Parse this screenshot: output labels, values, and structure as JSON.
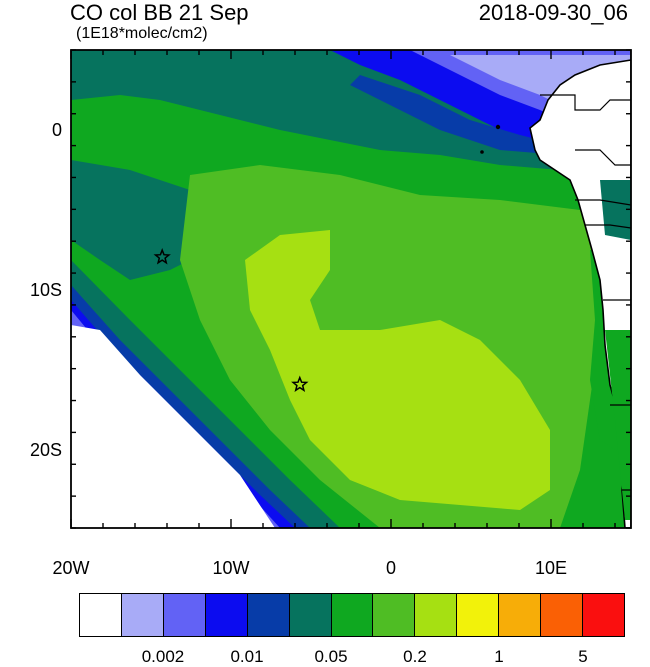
{
  "title": "CO col BB 21 Sep",
  "datetime": "2018-09-30_06",
  "units": "(1E18*molec/cm2)",
  "axes": {
    "lon_labels": [
      "20W",
      "10W",
      "0",
      "10E"
    ],
    "lat_labels": [
      "0",
      "10S",
      "20S"
    ],
    "lon_range": [
      -20,
      15
    ],
    "lat_range": [
      -25,
      5
    ]
  },
  "markers": [
    {
      "type": "star",
      "lon": -14.3,
      "lat": -8.0
    },
    {
      "type": "star",
      "lon": -5.7,
      "lat": -16.0
    }
  ],
  "colorbar": {
    "colors": [
      "#ffffff",
      "#a8abf7",
      "#6262f5",
      "#0c0cf0",
      "#073ca8",
      "#06735e",
      "#0fa820",
      "#4fbd24",
      "#a6e012",
      "#f2f20a",
      "#f7ad08",
      "#fa6005",
      "#fa0f0f"
    ],
    "labels": [
      "0.002",
      "0.01",
      "0.05",
      "0.2",
      "1",
      "5"
    ]
  },
  "palette": {
    "land": "#ffffff",
    "coast": "#000000"
  }
}
